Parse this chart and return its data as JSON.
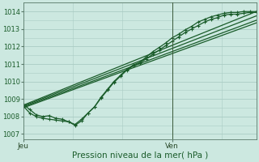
{
  "xlabel": "Pression niveau de la mer( hPa )",
  "bg_color": "#cce8e0",
  "grid_color": "#aaccC4",
  "line_color": "#1a5c2a",
  "tick_label_color": "#1a5c2a",
  "day_label_color": "#2a4a2a",
  "ylim": [
    1006.7,
    1014.5
  ],
  "yticks": [
    1007,
    1008,
    1009,
    1010,
    1011,
    1012,
    1013,
    1014
  ],
  "xlim": [
    0,
    36
  ],
  "jeu_x": 0.0,
  "ven_x": 23.0,
  "straight_lines": [
    [
      [
        0,
        1008.65
      ],
      [
        36,
        1014.0
      ]
    ],
    [
      [
        0,
        1008.6
      ],
      [
        36,
        1013.75
      ]
    ],
    [
      [
        0,
        1008.55
      ],
      [
        36,
        1013.5
      ]
    ],
    [
      [
        0,
        1008.5
      ],
      [
        36,
        1013.35
      ]
    ]
  ],
  "jagged_x": [
    0,
    1,
    2,
    3,
    4,
    5,
    6,
    7,
    8,
    9,
    10,
    11,
    12,
    13,
    14,
    15,
    16,
    17,
    18,
    19,
    20,
    21,
    22,
    23,
    24,
    25,
    26,
    27,
    28,
    29,
    30,
    31,
    32,
    33,
    34,
    35,
    36
  ],
  "jagged_series": [
    [
      1008.7,
      1008.4,
      1008.1,
      1008.0,
      1008.05,
      1007.9,
      1007.85,
      1007.7,
      1007.5,
      1007.75,
      1008.2,
      1008.55,
      1009.1,
      1009.55,
      1010.0,
      1010.35,
      1010.7,
      1010.95,
      1011.1,
      1011.4,
      1011.7,
      1011.95,
      1012.2,
      1012.5,
      1012.7,
      1012.95,
      1013.15,
      1013.4,
      1013.55,
      1013.7,
      1013.8,
      1013.9,
      1013.95,
      1013.95,
      1014.0,
      1014.0,
      1014.0
    ],
    [
      1008.6,
      1008.2,
      1008.0,
      1007.9,
      1007.85,
      1007.8,
      1007.75,
      1007.7,
      1007.55,
      1007.85,
      1008.2,
      1008.55,
      1009.05,
      1009.5,
      1009.95,
      1010.3,
      1010.65,
      1010.9,
      1011.05,
      1011.3,
      1011.55,
      1011.8,
      1012.05,
      1012.3,
      1012.55,
      1012.8,
      1013.0,
      1013.2,
      1013.4,
      1013.55,
      1013.65,
      1013.8,
      1013.85,
      1013.85,
      1013.9,
      1013.95,
      1013.95
    ]
  ],
  "marker": "+",
  "markersize": 3.5,
  "linewidth": 0.9,
  "straight_linewidth": 0.9
}
